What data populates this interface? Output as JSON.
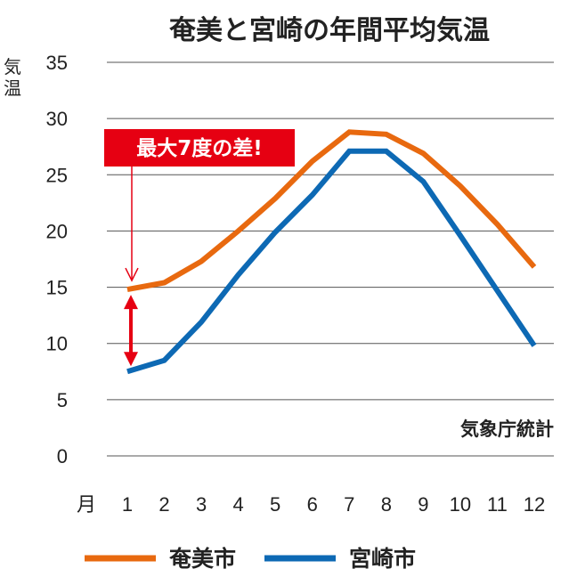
{
  "chart_data": {
    "type": "line",
    "title": "奄美と宮崎の年間平均気温",
    "ylabel": "気温",
    "xlabel": "月",
    "x": [
      1,
      2,
      3,
      4,
      5,
      6,
      7,
      8,
      9,
      10,
      11,
      12
    ],
    "x_tick_labels": [
      "1",
      "2",
      "3",
      "4",
      "5",
      "6",
      "7",
      "8",
      "9",
      "10",
      "11",
      "12"
    ],
    "y_ticks": [
      0,
      5,
      10,
      15,
      20,
      25,
      30,
      35
    ],
    "ylim": [
      0,
      35
    ],
    "grid": true,
    "series": [
      {
        "name": "奄美市",
        "color": "#e8690f",
        "values": [
          14.8,
          15.4,
          17.3,
          20.0,
          22.9,
          26.2,
          28.8,
          28.6,
          26.9,
          24.0,
          20.6,
          16.8
        ]
      },
      {
        "name": "宮崎市",
        "color": "#0d69b4",
        "values": [
          7.5,
          8.5,
          11.9,
          16.1,
          19.9,
          23.2,
          27.1,
          27.1,
          24.4,
          19.6,
          14.7,
          9.8
        ]
      }
    ],
    "annotation": {
      "text": "最大7度の差!",
      "color": "#e60012"
    },
    "source": "気象庁統計",
    "legend_position": "bottom"
  }
}
